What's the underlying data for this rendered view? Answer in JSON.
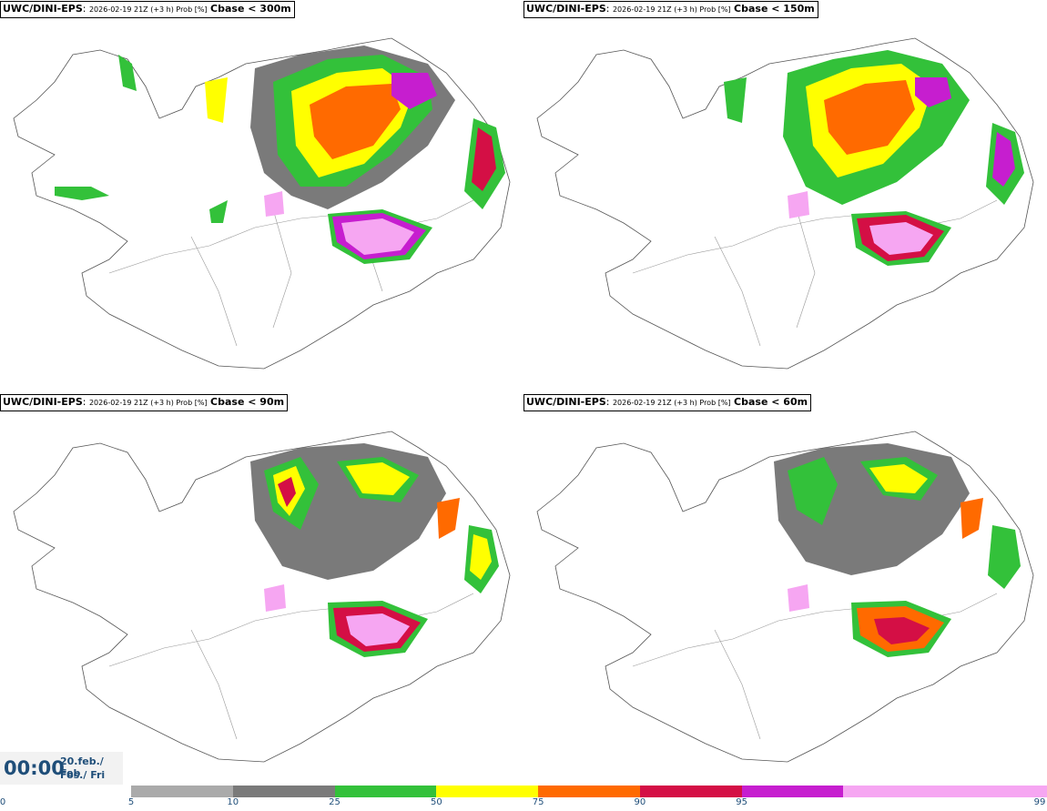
{
  "panels": [
    {
      "id": "p1",
      "model": "UWC/DINI-EPS",
      "meta": "2026-02-19 21Z (+3 h) Prob [%]",
      "threshold": "Cbase < 300m"
    },
    {
      "id": "p2",
      "model": "UWC/DINI-EPS",
      "meta": "2026-02-19 21Z (+3 h) Prob [%]",
      "threshold": "Cbase < 150m"
    },
    {
      "id": "p3",
      "model": "UWC/DINI-EPS",
      "meta": "2026-02-19 21Z (+3 h) Prob [%]",
      "threshold": "Cbase < 90m"
    },
    {
      "id": "p4",
      "model": "UWC/DINI-EPS",
      "meta": "2026-02-19 21Z (+3 h) Prob [%]",
      "threshold": "Cbase < 60m"
    }
  ],
  "time": {
    "clock": "00:00",
    "date": "20.feb./ Feb",
    "day": "Fös./ Fri"
  },
  "legend": {
    "labels": [
      "0",
      "5",
      "10",
      "25",
      "50",
      "75",
      "90",
      "95",
      "99"
    ],
    "colors": [
      "#aaaaaa",
      "#7a7a7a",
      "#33c13a",
      "#ffff00",
      "#ff6a00",
      "#d40f45",
      "#c61ecf",
      "#f6a6f2"
    ]
  }
}
